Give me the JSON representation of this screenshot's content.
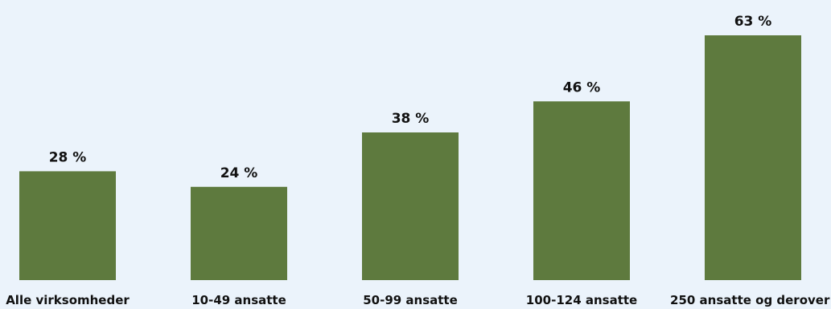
{
  "chart_data": {
    "type": "bar",
    "categories": [
      "Alle virksomheder",
      "10-49 ansatte",
      "50-99 ansatte",
      "100-124 ansatte",
      "250 ansatte og derover"
    ],
    "values": [
      28,
      24,
      38,
      46,
      63
    ],
    "value_labels": [
      "28 %",
      "24 %",
      "38 %",
      "46 %",
      "63 %"
    ],
    "title": "",
    "xlabel": "",
    "ylabel": "",
    "ylim": [
      0,
      63
    ],
    "grid": false,
    "legend": "none",
    "bar_color": "#5E7A3E",
    "background_color": "#EBF3FB"
  }
}
